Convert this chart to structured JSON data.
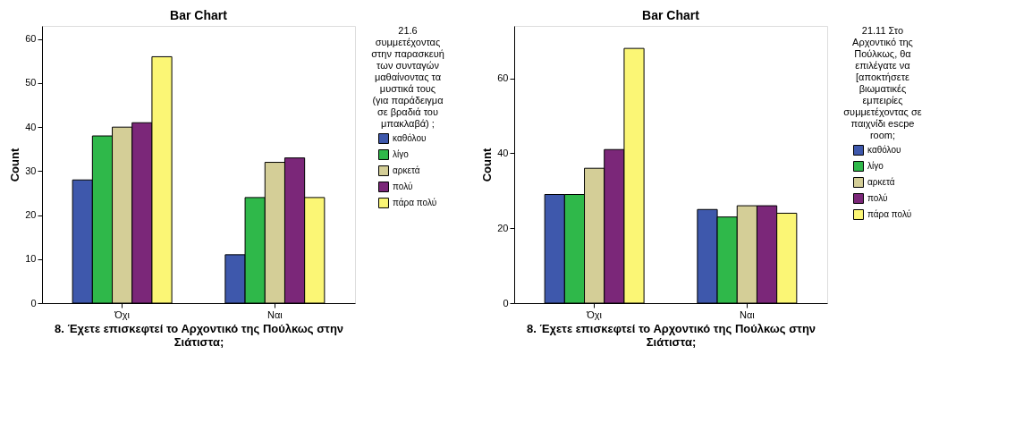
{
  "chart_data": [
    {
      "type": "bar",
      "title": "Bar Chart",
      "xlabel": "8. Έχετε επισκεφτεί το Αρχοντικό της Πούλκως στην Σιάτιστα;",
      "ylabel": "Count",
      "legend_title": "21.6 συμμετέχοντας στην παρασκευή των συνταγών μαθαίνοντας τα μυστικά τους (για παράδειγμα σε βραδιά του μπακλαβά) ;",
      "legend": "right",
      "grid": false,
      "categories": [
        "Όχι",
        "Ναι"
      ],
      "ylim": [
        0,
        63
      ],
      "yticks": [
        0,
        10,
        20,
        30,
        40,
        50,
        60
      ],
      "series": [
        {
          "name": "καθόλου",
          "color": "#3e58ac",
          "values": [
            28,
            11
          ]
        },
        {
          "name": "λίγο",
          "color": "#2fb84a",
          "values": [
            38,
            24
          ]
        },
        {
          "name": "αρκετά",
          "color": "#d4ce97",
          "values": [
            40,
            32
          ]
        },
        {
          "name": "πολύ",
          "color": "#7b2779",
          "values": [
            41,
            33
          ]
        },
        {
          "name": "πάρα πολύ",
          "color": "#fbf675",
          "values": [
            56,
            24
          ]
        }
      ]
    },
    {
      "type": "bar",
      "title": "Bar Chart",
      "xlabel": "8. Έχετε επισκεφτεί το Αρχοντικό της Πούλκως στην Σιάτιστα;",
      "ylabel": "Count",
      "legend_title": "21.11 Στο Αρχοντικό της Πούλκως, θα επιλέγατε να [αποκτήσετε βιωματικές εμπειρίες συμμετέχοντας σε παιχνίδι escpe room;",
      "legend": "right",
      "grid": false,
      "categories": [
        "Όχι",
        "Ναι"
      ],
      "ylim": [
        0,
        74
      ],
      "yticks": [
        0,
        20,
        40,
        60
      ],
      "series": [
        {
          "name": "καθόλου",
          "color": "#3e58ac",
          "values": [
            29,
            25
          ]
        },
        {
          "name": "λίγο",
          "color": "#2fb84a",
          "values": [
            29,
            23
          ]
        },
        {
          "name": "αρκετά",
          "color": "#d4ce97",
          "values": [
            36,
            26
          ]
        },
        {
          "name": "πολύ",
          "color": "#7b2779",
          "values": [
            41,
            26
          ]
        },
        {
          "name": "πάρα πολύ",
          "color": "#fbf675",
          "values": [
            68,
            24
          ]
        }
      ]
    }
  ]
}
